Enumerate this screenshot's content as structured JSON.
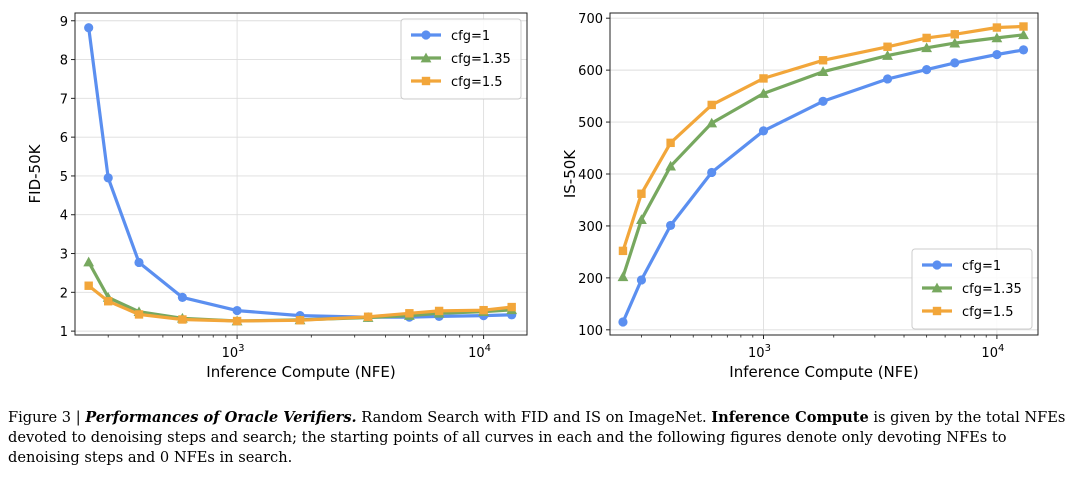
{
  "chart_data": [
    {
      "type": "line",
      "xlabel": "Inference Compute (NFE)",
      "ylabel": "FID-50K",
      "xscale": "log",
      "xlim": [
        220,
        15000
      ],
      "ylim": [
        0.9,
        9.2
      ],
      "xticks": [
        1000,
        10000
      ],
      "xtick_labels": [
        {
          "base": "10",
          "exp": "3"
        },
        {
          "base": "10",
          "exp": "4"
        }
      ],
      "yticks": [
        1,
        2,
        3,
        4,
        5,
        6,
        7,
        8,
        9
      ],
      "ytick_labels": [
        "1",
        "2",
        "3",
        "4",
        "5",
        "6",
        "7",
        "8",
        "9"
      ],
      "grid": true,
      "legend_position": "top-right",
      "series": [
        {
          "name": "cfg=1",
          "color": "#5b8ff0",
          "marker": "circle",
          "x": [
            250,
            300,
            400,
            600,
            1000,
            1800,
            3400,
            5000,
            6600,
            10000,
            13000
          ],
          "y": [
            8.82,
            4.95,
            2.77,
            1.87,
            1.53,
            1.4,
            1.36,
            1.36,
            1.38,
            1.4,
            1.42
          ]
        },
        {
          "name": "cfg=1.35",
          "color": "#77a85f",
          "marker": "triangle",
          "x": [
            250,
            300,
            400,
            600,
            1000,
            1800,
            3400,
            5000,
            6600,
            10000,
            13000
          ],
          "y": [
            2.78,
            1.87,
            1.5,
            1.33,
            1.26,
            1.29,
            1.35,
            1.4,
            1.46,
            1.5,
            1.55
          ]
        },
        {
          "name": "cfg=1.5",
          "color": "#f2a63a",
          "marker": "square",
          "x": [
            250,
            300,
            400,
            600,
            1000,
            1800,
            3400,
            5000,
            6600,
            10000,
            13000
          ],
          "y": [
            2.17,
            1.77,
            1.43,
            1.3,
            1.26,
            1.28,
            1.37,
            1.46,
            1.52,
            1.54,
            1.62
          ]
        }
      ]
    },
    {
      "type": "line",
      "xlabel": "Inference Compute (NFE)",
      "ylabel": "IS-50K",
      "xscale": "log",
      "xlim": [
        220,
        15000
      ],
      "ylim": [
        90,
        710
      ],
      "xticks": [
        1000,
        10000
      ],
      "xtick_labels": [
        {
          "base": "10",
          "exp": "3"
        },
        {
          "base": "10",
          "exp": "4"
        }
      ],
      "yticks": [
        100,
        200,
        300,
        400,
        500,
        600,
        700
      ],
      "ytick_labels": [
        "100",
        "200",
        "300",
        "400",
        "500",
        "600",
        "700"
      ],
      "grid": true,
      "legend_position": "bottom-right",
      "series": [
        {
          "name": "cfg=1",
          "color": "#5b8ff0",
          "marker": "circle",
          "x": [
            250,
            300,
            400,
            600,
            1000,
            1800,
            3400,
            5000,
            6600,
            10000,
            13000
          ],
          "y": [
            115,
            196,
            301,
            403,
            483,
            540,
            583,
            601,
            614,
            630,
            639
          ]
        },
        {
          "name": "cfg=1.35",
          "color": "#77a85f",
          "marker": "triangle",
          "x": [
            250,
            300,
            400,
            600,
            1000,
            1800,
            3400,
            5000,
            6600,
            10000,
            13000
          ],
          "y": [
            202,
            312,
            415,
            498,
            555,
            597,
            628,
            643,
            652,
            662,
            668
          ]
        },
        {
          "name": "cfg=1.5",
          "color": "#f2a63a",
          "marker": "square",
          "x": [
            250,
            300,
            400,
            600,
            1000,
            1800,
            3400,
            5000,
            6600,
            10000,
            13000
          ],
          "y": [
            252,
            362,
            460,
            533,
            584,
            619,
            645,
            662,
            669,
            682,
            684
          ]
        }
      ]
    }
  ],
  "caption": {
    "fig_label": "Figure 3 | ",
    "title": "Performances of Oracle Verifiers.",
    "text1": " Random Search with FID and IS on ImageNet. ",
    "bold_term": "Inference Compute",
    "text2": " is given by the total NFEs devoted to denoising steps and search; the starting points of all curves in each and the following figures denote only devoting NFEs to denoising steps and 0 NFEs in search."
  }
}
